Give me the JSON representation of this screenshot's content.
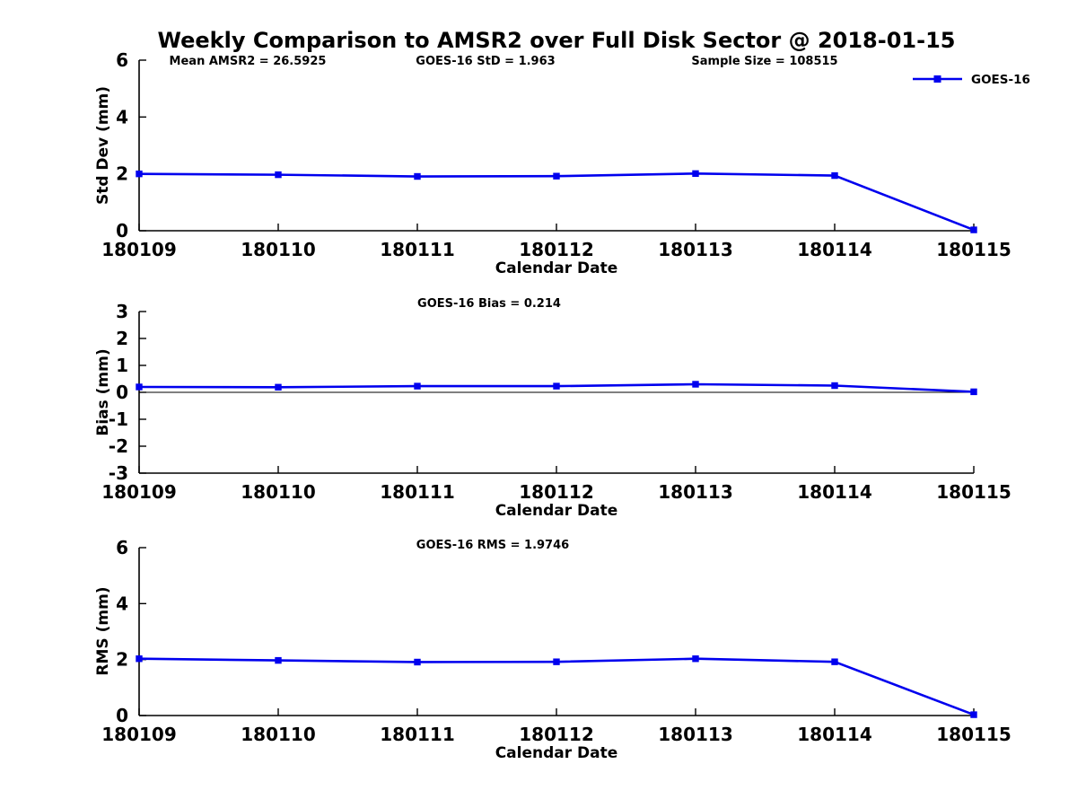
{
  "title": "Weekly Comparison to AMSR2 over Full Disk Sector @ 2018-01-15",
  "legend": {
    "label": "GOES-16",
    "color": "#0000EE",
    "position": "top-right"
  },
  "colors": {
    "line": "#0000EE",
    "axis": "#000000",
    "text": "#000000",
    "background": "#FFFFFF"
  },
  "chart_data": [
    {
      "type": "line",
      "name": "std-dev",
      "xlabel": "Calendar Date",
      "ylabel": "Std Dev (mm)",
      "categories": [
        "180109",
        "180110",
        "180111",
        "180112",
        "180113",
        "180114",
        "180115"
      ],
      "series": [
        {
          "name": "GOES-16",
          "color": "#0000EE",
          "marker": "square",
          "values": [
            2.0,
            1.97,
            1.91,
            1.92,
            2.01,
            1.94,
            0.03
          ]
        }
      ],
      "ylim": [
        0,
        6
      ],
      "yticks": [
        0,
        2,
        4,
        6
      ],
      "grid": false,
      "legend_position": "top-right",
      "annotations": [
        "Mean AMSR2 = 26.5925",
        "GOES-16 StD = 1.963",
        "Sample Size = 108515"
      ]
    },
    {
      "type": "line",
      "name": "bias",
      "xlabel": "Calendar Date",
      "ylabel": "Bias (mm)",
      "categories": [
        "180109",
        "180110",
        "180111",
        "180112",
        "180113",
        "180114",
        "180115"
      ],
      "series": [
        {
          "name": "GOES-16",
          "color": "#0000EE",
          "marker": "square",
          "values": [
            0.2,
            0.19,
            0.23,
            0.23,
            0.3,
            0.25,
            0.02
          ]
        }
      ],
      "ylim": [
        -3,
        3
      ],
      "yticks": [
        -3,
        -2,
        -1,
        0,
        1,
        2,
        3
      ],
      "grid": false,
      "zero_line": true,
      "annotations": [
        "GOES-16 Bias  = 0.214"
      ]
    },
    {
      "type": "line",
      "name": "rms",
      "xlabel": "Calendar Date",
      "ylabel": "RMS (mm)",
      "categories": [
        "180109",
        "180110",
        "180111",
        "180112",
        "180113",
        "180114",
        "180115"
      ],
      "series": [
        {
          "name": "GOES-16",
          "color": "#0000EE",
          "marker": "square",
          "values": [
            2.03,
            1.97,
            1.91,
            1.92,
            2.03,
            1.92,
            0.03
          ]
        }
      ],
      "ylim": [
        0,
        6
      ],
      "yticks": [
        0,
        2,
        4,
        6
      ],
      "grid": false,
      "annotations": [
        "GOES-16 RMS = 1.9746"
      ]
    }
  ]
}
